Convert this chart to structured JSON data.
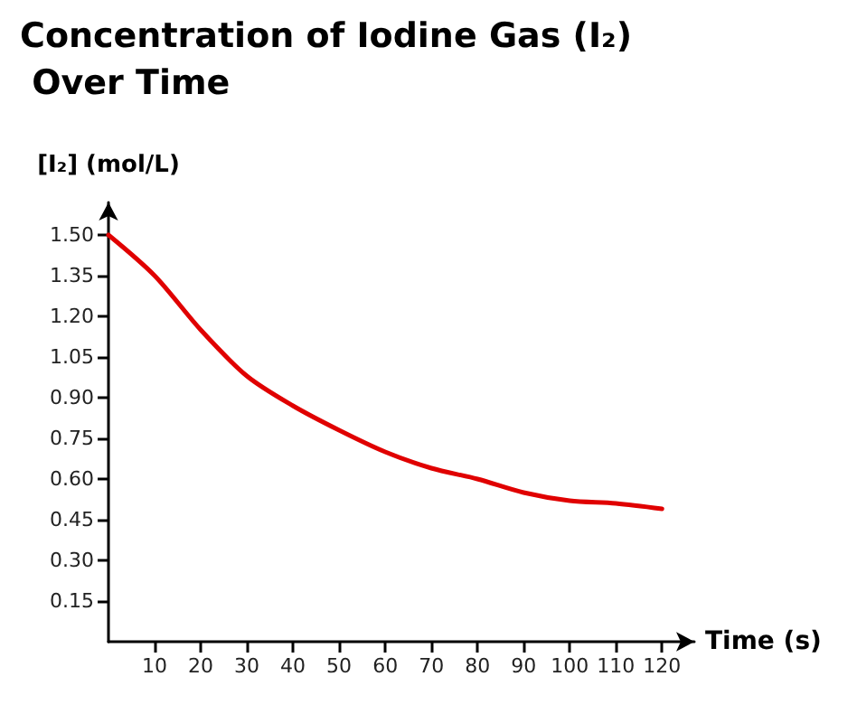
{
  "chart_data": {
    "type": "line",
    "title": "Concentration of Iodine Gas (I₂) Over Time",
    "xlabel": "Time (s)",
    "ylabel": "[I₂] (mol/L)",
    "x": [
      0,
      10,
      20,
      30,
      40,
      50,
      60,
      70,
      80,
      90,
      100,
      110,
      120
    ],
    "series": [
      {
        "color": "#e00000",
        "values": [
          1.5,
          1.35,
          1.15,
          0.98,
          0.87,
          0.78,
          0.7,
          0.64,
          0.6,
          0.55,
          0.52,
          0.51,
          0.49
        ]
      }
    ],
    "xlim": [
      0,
      127
    ],
    "ylim": [
      0,
      1.62
    ],
    "xticks": [
      10,
      20,
      30,
      40,
      50,
      60,
      70,
      80,
      90,
      100,
      110,
      120
    ],
    "yticks": [
      {
        "value": 0.15,
        "label": "0.15"
      },
      {
        "value": 0.3,
        "label": "0.30"
      },
      {
        "value": 0.45,
        "label": "0.45"
      },
      {
        "value": 0.6,
        "label": "0.60"
      },
      {
        "value": 0.75,
        "label": "0.75"
      },
      {
        "value": 0.9,
        "label": "0.90"
      },
      {
        "value": 1.05,
        "label": "1.05"
      },
      {
        "value": 1.2,
        "label": "1.20"
      },
      {
        "value": 1.35,
        "label": "1.35"
      },
      {
        "value": 1.5,
        "label": "1.50"
      }
    ],
    "grid": false,
    "marker": "none",
    "line_style": "solid"
  }
}
